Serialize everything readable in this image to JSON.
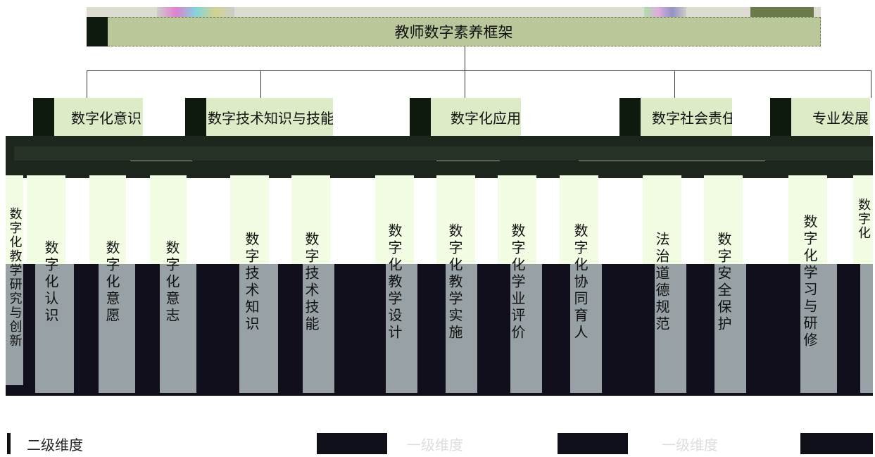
{
  "root": {
    "title": "教师数字素养框架"
  },
  "level1": [
    {
      "label": "数字化意识"
    },
    {
      "label": "数字技术知识与技能"
    },
    {
      "label": "数字化应用"
    },
    {
      "label": "数字社会责任"
    },
    {
      "label": "专业发展"
    }
  ],
  "level2": [
    {
      "label": "数字化教学研究与创新"
    },
    {
      "label": "数字化认识"
    },
    {
      "label": "数字化意愿"
    },
    {
      "label": "数字化意志"
    },
    {
      "label": "数字技术知识"
    },
    {
      "label": "数字技术技能"
    },
    {
      "label": "数字化教学设计"
    },
    {
      "label": "数字化教学实施"
    },
    {
      "label": "数字化学业评价"
    },
    {
      "label": "数字化协同育人"
    },
    {
      "label": "法治道德规范"
    },
    {
      "label": "数字安全保护"
    },
    {
      "label": "数字化学习与研修"
    },
    {
      "label": "数字化"
    }
  ],
  "legend": [
    {
      "label": "二级维度",
      "color": "#111111"
    },
    {
      "label": "一级维度",
      "color": "#111111"
    },
    {
      "label": "一级维度",
      "color": "#111111"
    }
  ]
}
